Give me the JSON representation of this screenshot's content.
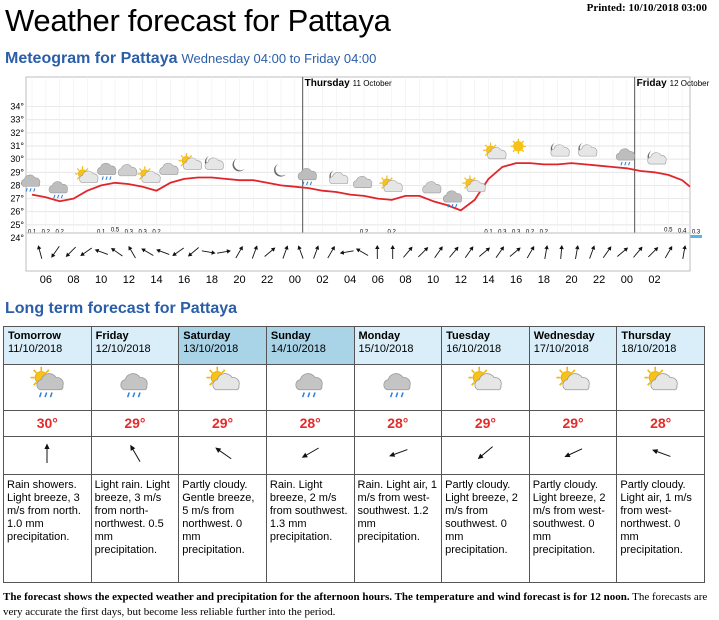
{
  "header": {
    "title": "Weather forecast for Pattaya",
    "printed": "Printed: 10/10/2018 03:00"
  },
  "meteogram": {
    "title": "Meteogram for Pattaya",
    "subtitle": "Wednesday 04:00 to Friday 04:00",
    "day_labels": [
      {
        "name": "Thursday",
        "date": "11 October"
      },
      {
        "name": "Friday",
        "date": "12 October"
      }
    ],
    "colors": {
      "temperature": "#e0262b",
      "precip": "#5ab4e6",
      "grid": "#dddddd"
    }
  },
  "chart_data": {
    "type": "line",
    "title": "Meteogram for Pattaya",
    "ylabel": "",
    "ylim": [
      24,
      34.5
    ],
    "yticks": [
      "24°",
      "25°",
      "26°",
      "27°",
      "28°",
      "29°",
      "30°",
      "31°",
      "32°",
      "33°",
      "34°"
    ],
    "xticks": [
      "06",
      "08",
      "10",
      "12",
      "14",
      "16",
      "18",
      "20",
      "22",
      "00",
      "02",
      "04",
      "06",
      "08",
      "10",
      "12",
      "14",
      "16",
      "18",
      "20",
      "22",
      "00",
      "02"
    ],
    "hours_from_start": [
      0,
      1,
      2,
      3,
      4,
      5,
      6,
      7,
      8,
      9,
      10,
      11,
      12,
      13,
      14,
      15,
      16,
      17,
      18,
      19,
      20,
      21,
      22,
      23,
      24,
      25,
      26,
      27,
      28,
      29,
      30,
      31,
      32,
      33,
      34,
      35,
      36,
      37,
      38,
      39,
      40,
      41,
      42,
      43,
      44,
      45,
      46,
      47,
      48
    ],
    "series": [
      {
        "values": [
          27.3,
          27.1,
          26.8,
          27.0,
          27.6,
          28.0,
          28.2,
          28.1,
          27.9,
          27.6,
          28.2,
          28.5,
          28.6,
          28.6,
          28.5,
          28.4,
          28.4,
          28.2,
          28.0,
          27.9,
          27.8,
          27.6,
          27.5,
          27.3,
          27.2,
          27.0,
          26.9,
          27.2,
          27.2,
          26.8,
          26.5,
          26.1,
          26.9,
          28.5,
          29.4,
          29.7,
          29.7,
          29.6,
          29.6,
          29.7,
          29.6,
          29.5,
          29.4,
          29.3,
          29.1,
          29.0,
          28.8,
          28.4,
          27.9
        ]
      }
    ],
    "precipitation": {
      "unit": "mm",
      "points": [
        {
          "hour": 0,
          "value": 0.1
        },
        {
          "hour": 1,
          "value": 0.2
        },
        {
          "hour": 2,
          "value": 0.2
        },
        {
          "hour": 5,
          "value": 0.1
        },
        {
          "hour": 6,
          "value": 0.5
        },
        {
          "hour": 7,
          "value": 0.3
        },
        {
          "hour": 8,
          "value": 0.3
        },
        {
          "hour": 9,
          "value": 0.2
        },
        {
          "hour": 24,
          "value": 0.2
        },
        {
          "hour": 26,
          "value": 0.2
        },
        {
          "hour": 33,
          "value": 0.1
        },
        {
          "hour": 34,
          "value": 0.3
        },
        {
          "hour": 35,
          "value": 0.3
        },
        {
          "hour": 36,
          "value": 0.2
        },
        {
          "hour": 37,
          "value": 0.2
        },
        {
          "hour": 46,
          "value": 0.5
        },
        {
          "hour": 47,
          "value": 0.4
        },
        {
          "hour": 48,
          "value": 0.3
        }
      ]
    },
    "weather_icons": [
      {
        "hour": 0,
        "icon": "light-rain-icon"
      },
      {
        "hour": 2,
        "icon": "light-rain-icon"
      },
      {
        "hour": 4,
        "icon": "partly-cloudy-sun-icon"
      },
      {
        "hour": 5.5,
        "icon": "light-rain-icon"
      },
      {
        "hour": 7,
        "icon": "cloudy-icon"
      },
      {
        "hour": 8.5,
        "icon": "partly-cloudy-sun-icon"
      },
      {
        "hour": 10,
        "icon": "cloudy-icon"
      },
      {
        "hour": 11.5,
        "icon": "partly-cloudy-sun-icon"
      },
      {
        "hour": 13,
        "icon": "partly-cloudy-night-icon"
      },
      {
        "hour": 15,
        "icon": "moon-icon"
      },
      {
        "hour": 18,
        "icon": "moon-icon"
      },
      {
        "hour": 20,
        "icon": "light-rain-icon"
      },
      {
        "hour": 22,
        "icon": "partly-cloudy-night-icon"
      },
      {
        "hour": 24,
        "icon": "cloudy-icon"
      },
      {
        "hour": 26,
        "icon": "partly-cloudy-sun-icon"
      },
      {
        "hour": 29,
        "icon": "cloudy-icon"
      },
      {
        "hour": 30.5,
        "icon": "light-rain-icon"
      },
      {
        "hour": 32,
        "icon": "partly-cloudy-sun-icon"
      },
      {
        "hour": 33.5,
        "icon": "partly-cloudy-sun-icon"
      },
      {
        "hour": 35.5,
        "icon": "sun-icon"
      },
      {
        "hour": 38,
        "icon": "partly-cloudy-night-icon"
      },
      {
        "hour": 40,
        "icon": "partly-cloudy-night-icon"
      },
      {
        "hour": 43,
        "icon": "light-rain-icon"
      },
      {
        "hour": 45,
        "icon": "partly-cloudy-night-icon"
      }
    ],
    "wind_arrows_deg": [
      165,
      35,
      45,
      55,
      110,
      125,
      150,
      120,
      110,
      55,
      50,
      280,
      260,
      210,
      200,
      230,
      200,
      160,
      200,
      210,
      80,
      120,
      180,
      180,
      220,
      225,
      215,
      220,
      215,
      230,
      215,
      230,
      210,
      190,
      185,
      190,
      200,
      215,
      230,
      220,
      225,
      210,
      190
    ]
  },
  "long_term": {
    "title": "Long term forecast for Pattaya",
    "days": [
      {
        "day": "Tomorrow",
        "date": "11/10/2018",
        "icon": "light-rain-sun-icon",
        "temp": "30°",
        "wind_deg": 180,
        "desc": "Rain showers. Light breeze, 3 m/s from north. 1.0 mm precipitation.",
        "highlight": false
      },
      {
        "day": "Friday",
        "date": "12/10/2018",
        "icon": "cloudy-rain-icon",
        "temp": "29°",
        "wind_deg": 150,
        "desc": "Light rain. Light breeze, 3 m/s from north-northwest. 0.5 mm precipitation.",
        "highlight": false
      },
      {
        "day": "Saturday",
        "date": "13/10/2018",
        "icon": "partly-cloudy-sun-icon",
        "temp": "29°",
        "wind_deg": 125,
        "desc": "Partly cloudy. Gentle breeze, 5 m/s from northwest. 0 mm precipitation.",
        "highlight": true
      },
      {
        "day": "Sunday",
        "date": "14/10/2018",
        "icon": "cloudy-rain-icon",
        "temp": "28°",
        "wind_deg": 60,
        "desc": "Rain. Light breeze, 2 m/s from southwest. 1.3 mm precipitation.",
        "highlight": true
      },
      {
        "day": "Monday",
        "date": "15/10/2018",
        "icon": "cloudy-rain-icon",
        "temp": "28°",
        "wind_deg": 70,
        "desc": "Rain. Light air, 1 m/s from west-southwest. 1.2 mm precipitation.",
        "highlight": false
      },
      {
        "day": "Tuesday",
        "date": "16/10/2018",
        "icon": "partly-cloudy-sun-icon",
        "temp": "29°",
        "wind_deg": 50,
        "desc": "Partly cloudy. Light breeze, 2 m/s from southwest. 0 mm precipitation.",
        "highlight": false
      },
      {
        "day": "Wednesday",
        "date": "17/10/2018",
        "icon": "partly-cloudy-sun-icon",
        "temp": "29°",
        "wind_deg": 65,
        "desc": "Partly cloudy. Light breeze, 2 m/s from west-southwest. 0 mm precipitation.",
        "highlight": false
      },
      {
        "day": "Thursday",
        "date": "18/10/2018",
        "icon": "partly-cloudy-sun-icon",
        "temp": "28°",
        "wind_deg": 110,
        "desc": "Partly cloudy. Light air, 1 m/s from west-northwest. 0 mm precipitation.",
        "highlight": false
      }
    ]
  },
  "footer": {
    "bold_text": "The forecast shows the expected weather and precipitation for the afternoon hours. The temperature and wind forecast is for 12 noon.",
    "text": " The forecasts are very accurate the first days, but become less reliable further into the period."
  }
}
